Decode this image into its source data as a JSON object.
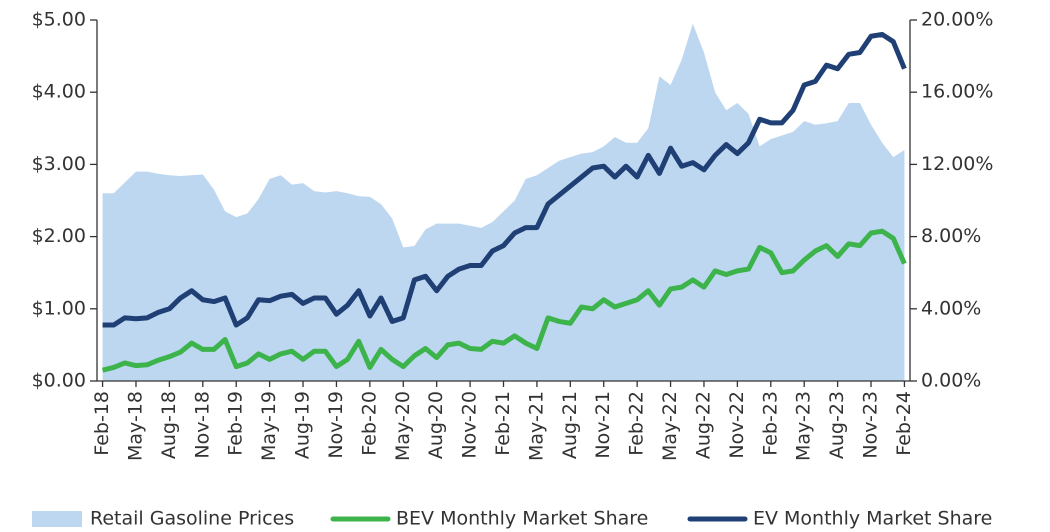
{
  "chart_data": {
    "type": "line",
    "categories": [
      "Feb-18",
      null,
      null,
      "May-18",
      null,
      null,
      "Aug-18",
      null,
      null,
      "Nov-18",
      null,
      null,
      "Feb-19",
      null,
      null,
      "May-19",
      null,
      null,
      "Aug-19",
      null,
      null,
      "Nov-19",
      null,
      null,
      "Feb-20",
      null,
      null,
      "May-20",
      null,
      null,
      "Aug-20",
      null,
      null,
      "Nov-20",
      null,
      null,
      "Feb-21",
      null,
      null,
      "May-21",
      null,
      null,
      "Aug-21",
      null,
      null,
      "Nov-21",
      null,
      null,
      "Feb-22",
      null,
      null,
      "May-22",
      null,
      null,
      "Aug-22",
      null,
      null,
      "Nov-22",
      null,
      null,
      "Feb-23",
      null,
      null,
      "May-23",
      null,
      null,
      "Aug-23",
      null,
      null,
      "Nov-23",
      null,
      null,
      "Feb-24"
    ],
    "series": [
      {
        "name": "Retail Gasoline Prices",
        "type": "area",
        "axis": "y",
        "color": "#bdd7f1",
        "values": [
          2.6,
          2.6,
          2.75,
          2.9,
          2.9,
          2.87,
          2.85,
          2.84,
          2.85,
          2.86,
          2.65,
          2.35,
          2.27,
          2.32,
          2.52,
          2.8,
          2.85,
          2.72,
          2.74,
          2.63,
          2.61,
          2.63,
          2.6,
          2.56,
          2.55,
          2.45,
          2.25,
          1.85,
          1.87,
          2.1,
          2.18,
          2.18,
          2.18,
          2.15,
          2.12,
          2.2,
          2.35,
          2.5,
          2.8,
          2.85,
          2.95,
          3.05,
          3.1,
          3.15,
          3.17,
          3.25,
          3.38,
          3.3,
          3.3,
          3.5,
          4.22,
          4.1,
          4.45,
          4.95,
          4.55,
          4.0,
          3.75,
          3.85,
          3.7,
          3.25,
          3.35,
          3.4,
          3.45,
          3.6,
          3.55,
          3.57,
          3.6,
          3.85,
          3.85,
          3.55,
          3.3,
          3.1,
          3.2
        ]
      },
      {
        "name": "BEV Monthly Market Share",
        "type": "line",
        "axis": "y2",
        "color": "#3cb44b",
        "values": [
          0.6,
          0.75,
          1.0,
          0.85,
          0.9,
          1.15,
          1.35,
          1.6,
          2.1,
          1.75,
          1.75,
          2.3,
          0.8,
          1.0,
          1.5,
          1.2,
          1.5,
          1.65,
          1.2,
          1.65,
          1.65,
          0.8,
          1.2,
          2.2,
          0.75,
          1.75,
          1.2,
          0.8,
          1.4,
          1.8,
          1.3,
          2.0,
          2.1,
          1.8,
          1.75,
          2.2,
          2.1,
          2.5,
          2.1,
          1.8,
          3.5,
          3.3,
          3.2,
          4.1,
          4.0,
          4.5,
          4.1,
          4.3,
          4.5,
          5.0,
          4.2,
          5.1,
          5.2,
          5.6,
          5.2,
          6.1,
          5.9,
          6.1,
          6.2,
          7.4,
          7.1,
          6.0,
          6.1,
          6.7,
          7.2,
          7.5,
          6.9,
          7.6,
          7.5,
          8.2,
          8.3,
          7.9,
          6.5
        ]
      },
      {
        "name": "EV Monthly Market Share",
        "type": "line",
        "axis": "y2",
        "color": "#1f3f75",
        "values": [
          3.1,
          3.1,
          3.5,
          3.45,
          3.5,
          3.8,
          4.0,
          4.6,
          5.0,
          4.5,
          4.4,
          4.6,
          3.1,
          3.5,
          4.5,
          4.45,
          4.7,
          4.8,
          4.3,
          4.6,
          4.6,
          3.7,
          4.2,
          5.0,
          3.6,
          4.6,
          3.3,
          3.5,
          5.6,
          5.8,
          5.0,
          5.8,
          6.2,
          6.4,
          6.4,
          7.2,
          7.5,
          8.2,
          8.5,
          8.5,
          9.8,
          10.3,
          10.8,
          11.3,
          11.8,
          11.9,
          11.3,
          11.9,
          11.3,
          12.5,
          11.5,
          12.9,
          11.9,
          12.1,
          11.7,
          12.5,
          13.1,
          12.6,
          13.2,
          14.5,
          14.3,
          14.3,
          15.0,
          16.4,
          16.6,
          17.5,
          17.3,
          18.1,
          18.2,
          19.1,
          19.2,
          18.8,
          17.3
        ]
      }
    ],
    "ylim": [
      0,
      5
    ],
    "yticks": [
      {
        "value": 0,
        "label": "$0.00"
      },
      {
        "value": 1,
        "label": "$1.00"
      },
      {
        "value": 2,
        "label": "$2.00"
      },
      {
        "value": 3,
        "label": "$3.00"
      },
      {
        "value": 4,
        "label": "$4.00"
      },
      {
        "value": 5,
        "label": "$5.00"
      }
    ],
    "y2lim": [
      0,
      20
    ],
    "y2ticks": [
      {
        "value": 0,
        "label": "0.00%"
      },
      {
        "value": 4,
        "label": "4.00%"
      },
      {
        "value": 8,
        "label": "8.00%"
      },
      {
        "value": 12,
        "label": "12.00%"
      },
      {
        "value": 16,
        "label": "16.00%"
      },
      {
        "value": 20,
        "label": "20.00%"
      }
    ],
    "grid": false,
    "legend": "bottom"
  }
}
